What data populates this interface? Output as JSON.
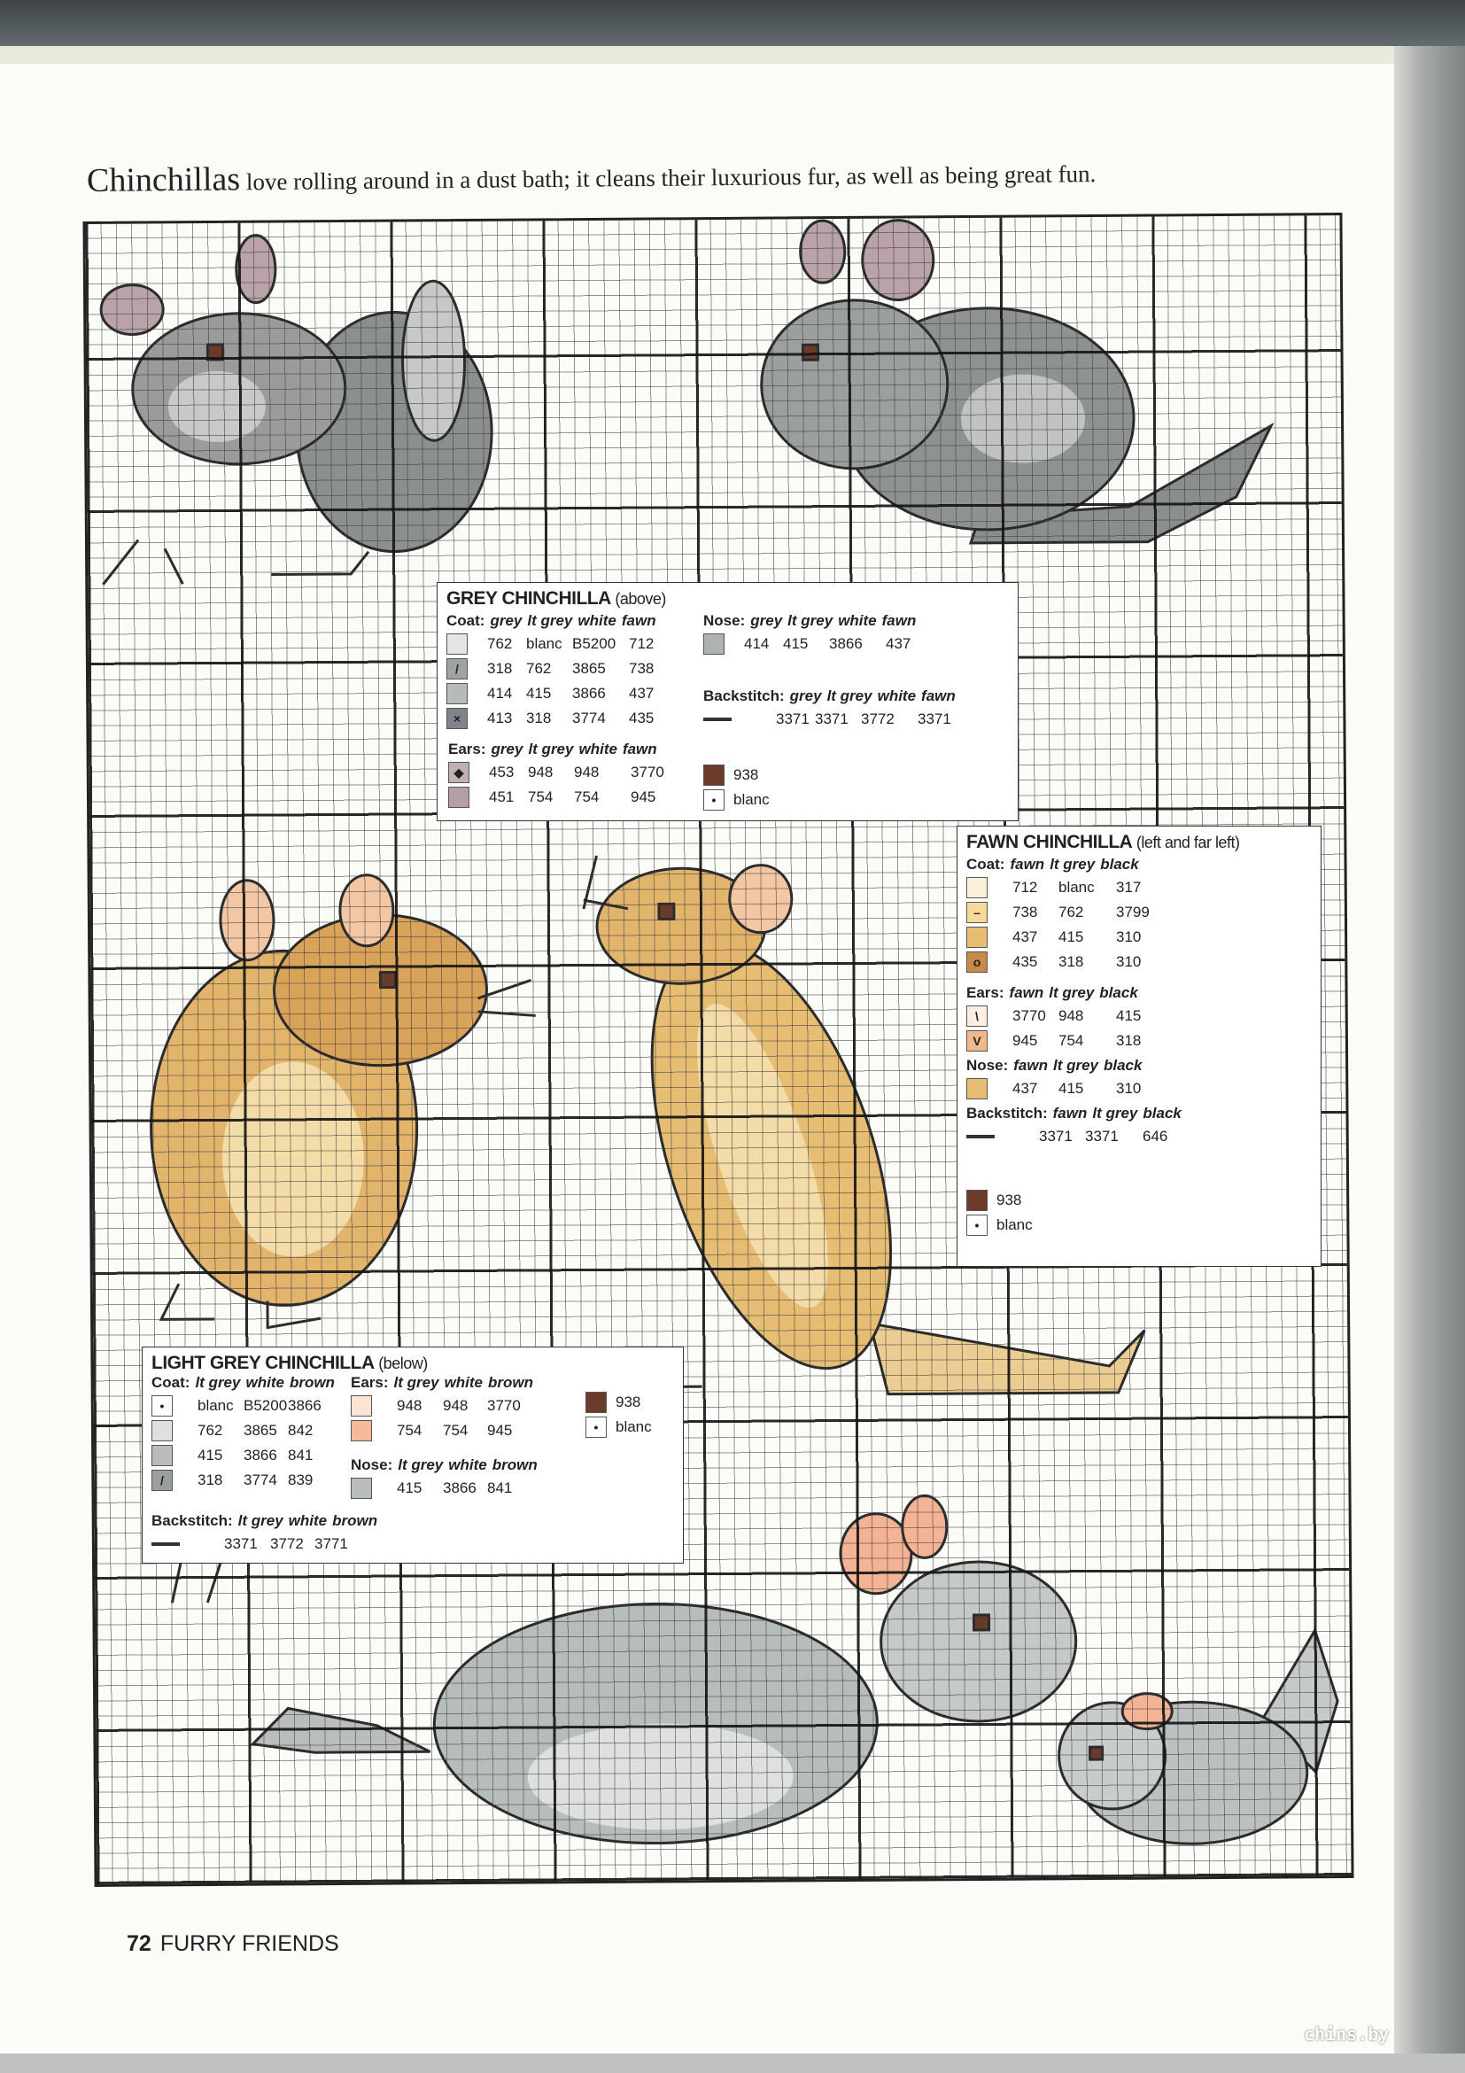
{
  "caption": {
    "lead": "Chinchillas",
    "text": " love rolling around in a dust bath; it cleans their luxurious fur, as well as being great fun."
  },
  "colors": {
    "grey": "#8f9292",
    "lt_grey": "#b9bdbc",
    "pale_grey": "#dfe2e1",
    "fawn": "#e2b46c",
    "pale_fawn": "#f4dca8",
    "dark_fawn": "#c98a45",
    "ear_pink": "#f3b394",
    "ear_mauve": "#b9a3a8",
    "nose_brown": "#6b3a2a",
    "outline": "#2b2b2b"
  },
  "keys": {
    "grey": {
      "title": "GREY CHINCHILLA",
      "subtitle": "(above)",
      "coat": {
        "label": "Coat:",
        "cols": [
          "grey",
          "lt grey",
          "white",
          "fawn"
        ],
        "rows": [
          {
            "color": "#e3e6e5",
            "symbol": "",
            "values": [
              "762",
              "blanc",
              "B5200",
              "712"
            ]
          },
          {
            "color": "#9ea3a2",
            "symbol": "/",
            "values": [
              "318",
              "762",
              "3865",
              "738"
            ]
          },
          {
            "color": "#b6bab9",
            "symbol": "",
            "values": [
              "414",
              "415",
              "3866",
              "437"
            ]
          },
          {
            "color": "#80848a",
            "symbol": "×",
            "values": [
              "413",
              "318",
              "3774",
              "435"
            ]
          }
        ]
      },
      "ears": {
        "label": "Ears:",
        "cols": [
          "grey",
          "lt grey",
          "white",
          "fawn"
        ],
        "rows": [
          {
            "color": "#c3aeb0",
            "symbol": "◆",
            "values": [
              "453",
              "948",
              "948",
              "3770"
            ]
          },
          {
            "color": "#b59ea4",
            "symbol": "",
            "values": [
              "451",
              "754",
              "754",
              "945"
            ]
          }
        ]
      },
      "nose": {
        "label": "Nose:",
        "cols": [
          "grey",
          "lt grey",
          "white",
          "fawn"
        ],
        "rows": [
          {
            "color": "#aeb3b2",
            "symbol": "",
            "values": [
              "414",
              "415",
              "3866",
              "437"
            ]
          }
        ]
      },
      "backstitch": {
        "label": "Backstitch:",
        "cols": [
          "grey",
          "lt grey",
          "white",
          "fawn"
        ],
        "values": [
          "3371",
          "3371",
          "3772",
          "3371"
        ]
      },
      "extras": [
        {
          "color": "#6b3a2a",
          "symbol": "",
          "value": "938"
        },
        {
          "color": "#ffffff",
          "symbol": "•",
          "value": "blanc"
        }
      ]
    },
    "fawn": {
      "title": "FAWN CHINCHILLA",
      "subtitle": "(left and far left)",
      "coat": {
        "label": "Coat:",
        "cols": [
          "fawn",
          "lt grey",
          "black"
        ],
        "rows": [
          {
            "color": "#fbf0dc",
            "symbol": "",
            "values": [
              "712",
              "blanc",
              "317"
            ]
          },
          {
            "color": "#f4d999",
            "symbol": "–",
            "values": [
              "738",
              "762",
              "3799"
            ]
          },
          {
            "color": "#e6bd73",
            "symbol": "",
            "values": [
              "437",
              "415",
              "310"
            ]
          },
          {
            "color": "#c98a45",
            "symbol": "o",
            "values": [
              "435",
              "318",
              "310"
            ]
          }
        ]
      },
      "ears": {
        "label": "Ears:",
        "cols": [
          "fawn",
          "lt grey",
          "black"
        ],
        "rows": [
          {
            "color": "#fbeee3",
            "symbol": "\\",
            "values": [
              "3770",
              "948",
              "415"
            ]
          },
          {
            "color": "#f0b98c",
            "symbol": "V",
            "values": [
              "945",
              "754",
              "318"
            ]
          }
        ]
      },
      "nose": {
        "label": "Nose:",
        "cols": [
          "fawn",
          "lt grey",
          "black"
        ],
        "rows": [
          {
            "color": "#e6bd73",
            "symbol": "",
            "values": [
              "437",
              "415",
              "310"
            ]
          }
        ]
      },
      "backstitch": {
        "label": "Backstitch:",
        "cols": [
          "fawn",
          "lt grey",
          "black"
        ],
        "values": [
          "3371",
          "3371",
          "646"
        ]
      },
      "extras": [
        {
          "color": "#6b3a2a",
          "symbol": "",
          "value": "938"
        },
        {
          "color": "#ffffff",
          "symbol": "•",
          "value": "blanc"
        }
      ]
    },
    "light_grey": {
      "title": "LIGHT GREY CHINCHILLA",
      "subtitle": "(below)",
      "coat": {
        "label": "Coat:",
        "cols": [
          "lt grey",
          "white",
          "brown"
        ],
        "rows": [
          {
            "color": "#ffffff",
            "symbol": "•",
            "values": [
              "blanc",
              "B5200",
              "3866"
            ]
          },
          {
            "color": "#dde0df",
            "symbol": "",
            "values": [
              "762",
              "3865",
              "842"
            ]
          },
          {
            "color": "#b8bdbc",
            "symbol": "",
            "values": [
              "415",
              "3866",
              "841"
            ]
          },
          {
            "color": "#9a9e9d",
            "symbol": "/",
            "values": [
              "318",
              "3774",
              "839"
            ]
          }
        ]
      },
      "ears": {
        "label": "Ears:",
        "cols": [
          "lt grey",
          "white",
          "brown"
        ],
        "rows": [
          {
            "color": "#fde3d3",
            "symbol": "",
            "values": [
              "948",
              "948",
              "3770"
            ]
          },
          {
            "color": "#f7b999",
            "symbol": "",
            "values": [
              "754",
              "754",
              "945"
            ]
          }
        ]
      },
      "nose": {
        "label": "Nose:",
        "cols": [
          "lt grey",
          "white",
          "brown"
        ],
        "rows": [
          {
            "color": "#b8bdbc",
            "symbol": "",
            "values": [
              "415",
              "3866",
              "841"
            ]
          }
        ]
      },
      "backstitch": {
        "label": "Backstitch:",
        "cols": [
          "lt grey",
          "white",
          "brown"
        ],
        "values": [
          "3371",
          "3772",
          "3771"
        ]
      },
      "extras": [
        {
          "color": "#6b3a2a",
          "symbol": "",
          "value": "938"
        },
        {
          "color": "#ffffff",
          "symbol": "•",
          "value": "blanc"
        }
      ]
    }
  },
  "footer": {
    "page_number": "72",
    "section": "FURRY FRIENDS"
  },
  "watermark": "chins.by"
}
